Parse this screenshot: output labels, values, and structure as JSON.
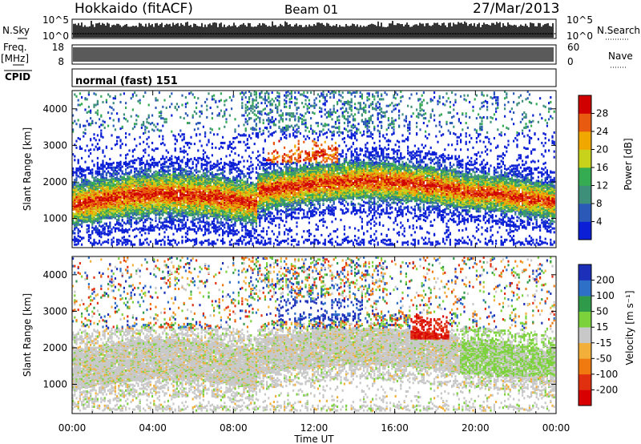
{
  "header": {
    "station": "Hokkaido (fitACF)",
    "beam": "Beam 01",
    "date": "27/Mar/2013"
  },
  "noise_panel": {
    "left_label": "N.Sky",
    "right_label": "N.Search",
    "ticks": [
      "10^5",
      "10^0"
    ]
  },
  "freq_panel": {
    "left_label_1": "Freq.",
    "left_label_2": "[MHz]",
    "right_label": "Nave",
    "left_ticks": [
      "18",
      "8"
    ],
    "right_ticks": [
      "60",
      "0"
    ]
  },
  "cpid_panel": {
    "label": "CPID",
    "value": "normal (fast) 151"
  },
  "chart_data": [
    {
      "type": "heatmap",
      "name": "power",
      "ylabel": "Slant Range [km]",
      "ylim": [
        200,
        4500
      ],
      "yticks": [
        "1000",
        "2000",
        "3000",
        "4000"
      ],
      "colorbar_label": "Power [dB]",
      "colorbar_ticks": [
        "4",
        "8",
        "12",
        "16",
        "20",
        "24",
        "28"
      ],
      "colors": [
        "#0a1fd6",
        "#2b59b8",
        "#3e8f7a",
        "#35ab52",
        "#c8d21a",
        "#f0a800",
        "#e85a10",
        "#d00000"
      ]
    },
    {
      "type": "heatmap",
      "name": "velocity",
      "ylabel": "Slant Range [km]",
      "ylim": [
        200,
        4500
      ],
      "yticks": [
        "1000",
        "2000",
        "3000",
        "4000"
      ],
      "colorbar_label": "Velocity [m s⁻¹]",
      "colorbar_ticks": [
        "200",
        "100",
        "50",
        "15",
        "-15",
        "-50",
        "-100",
        "-200"
      ],
      "colors": [
        "#1b2fb8",
        "#2e6fc8",
        "#2f9a4a",
        "#7cd23a",
        "#c8c8c8",
        "#f2b03a",
        "#f07a10",
        "#e03010",
        "#d80000"
      ]
    }
  ],
  "x_axis": {
    "label": "Time UT",
    "ticks": [
      "00:00",
      "04:00",
      "08:00",
      "12:00",
      "16:00",
      "20:00",
      "00:00"
    ]
  }
}
